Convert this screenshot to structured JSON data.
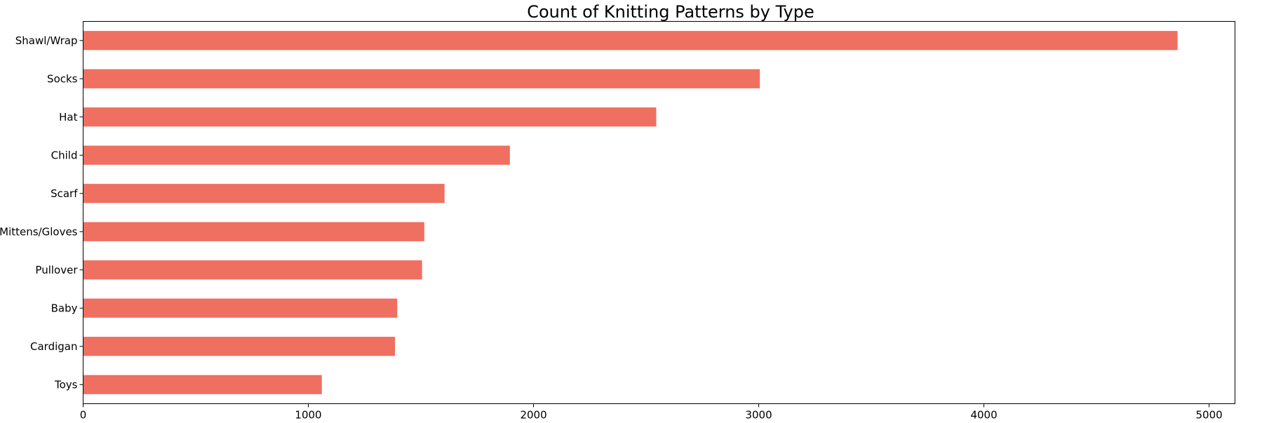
{
  "chart_data": {
    "type": "bar",
    "orientation": "horizontal",
    "title": "Count of Knitting Patterns by Type",
    "xlabel": "",
    "ylabel": "",
    "categories": [
      "Shawl/Wrap",
      "Socks",
      "Hat",
      "Child",
      "Scarf",
      "Mittens/Gloves",
      "Pullover",
      "Baby",
      "Cardigan",
      "Toys"
    ],
    "values": [
      4860,
      3005,
      2545,
      1895,
      1605,
      1515,
      1505,
      1395,
      1385,
      1060
    ],
    "xlim": [
      0,
      5115
    ],
    "xticks": [
      0,
      1000,
      2000,
      3000,
      4000,
      5000
    ],
    "grid": false,
    "legend": "none",
    "bar_color": "#ef6f61"
  }
}
